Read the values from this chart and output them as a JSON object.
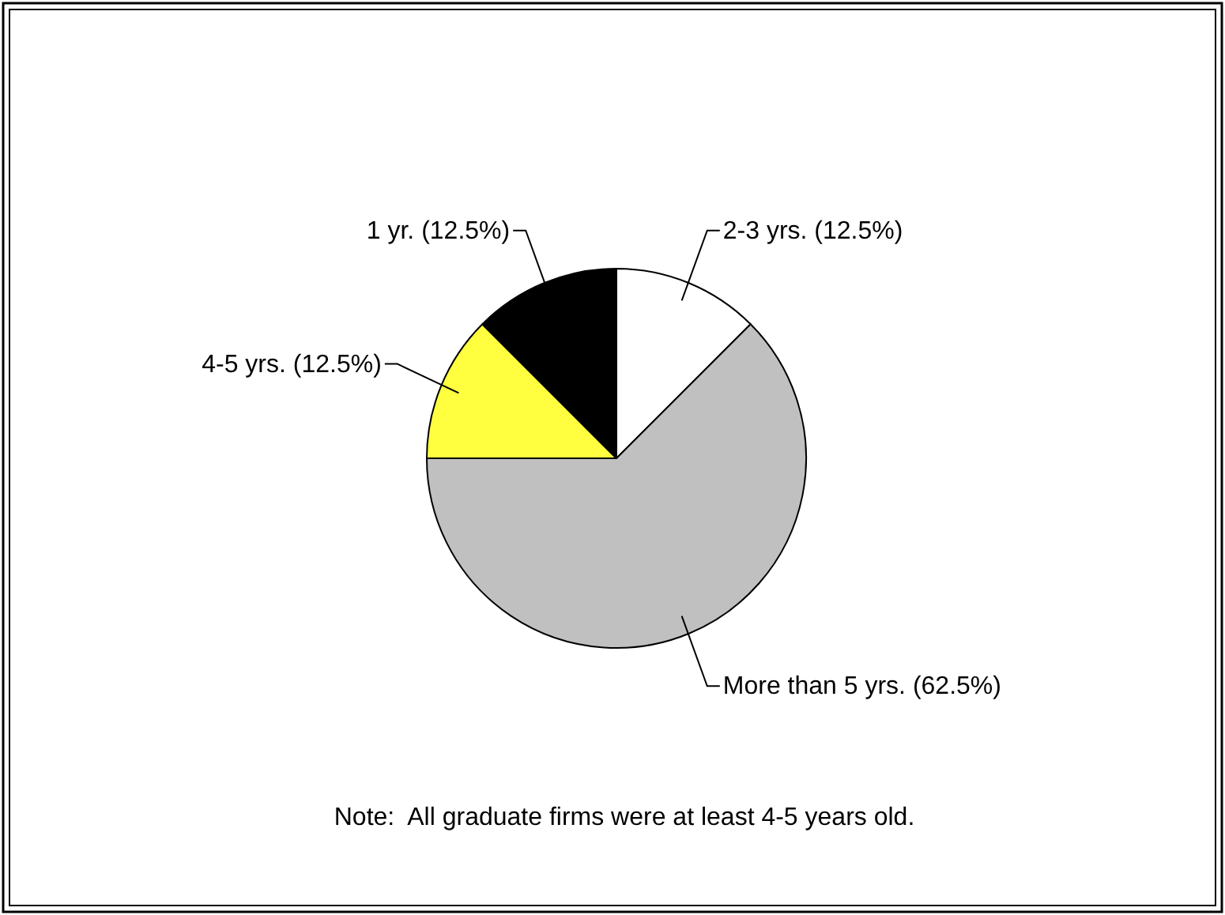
{
  "chart_data": {
    "type": "pie",
    "categories": [
      "2-3 yrs.",
      "More than 5 yrs.",
      "4-5 yrs.",
      "1 yr."
    ],
    "values": [
      12.5,
      62.5,
      12.5,
      12.5
    ],
    "colors": [
      "#ffffff",
      "#c0c0c0",
      "#ffff40",
      "#000000"
    ],
    "value_labels": [
      "(12.5%)",
      "(62.5%)",
      "(12.5%)",
      "(12.5%)"
    ],
    "annotations": [
      "Note:  All graduate firms were at least 4-5 years old."
    ]
  }
}
